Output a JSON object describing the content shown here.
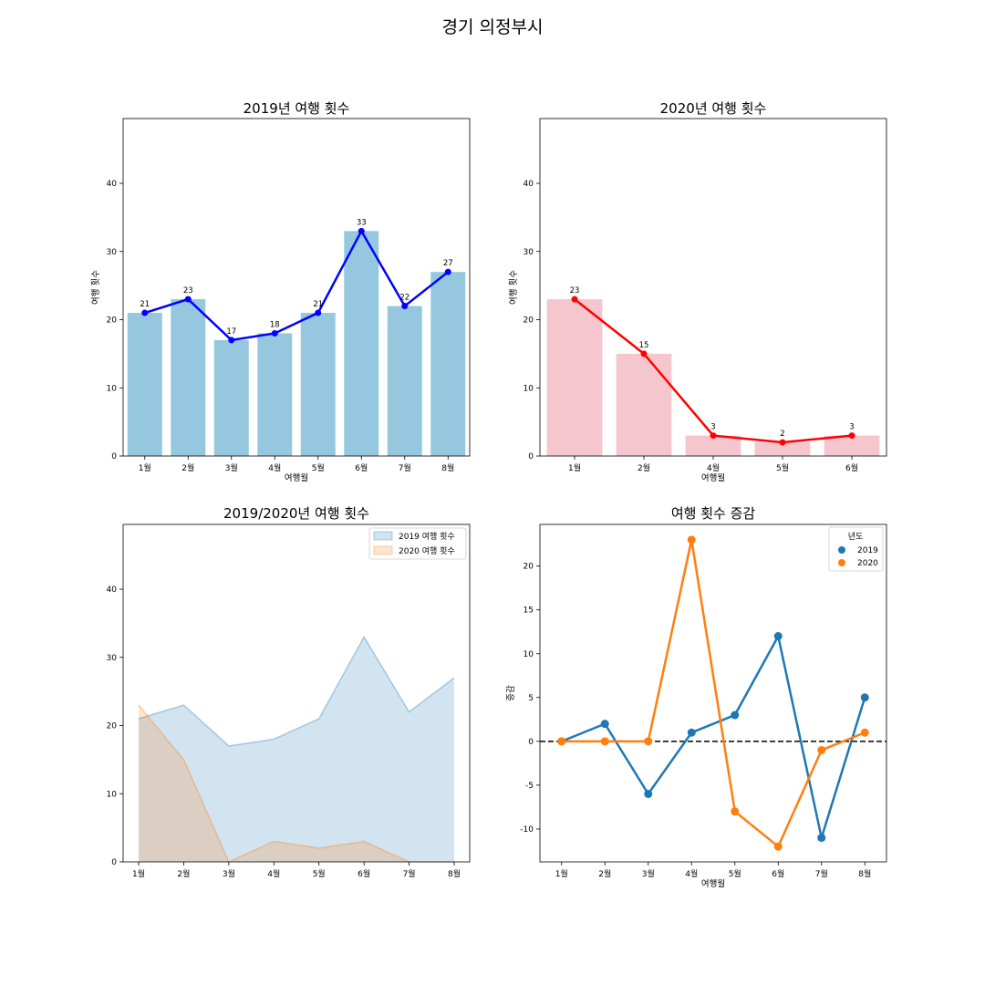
{
  "figure_title": "경기 의정부시",
  "chart_data": [
    {
      "type": "bar",
      "title": "2019년 여행 횟수",
      "xlabel": "여행월",
      "ylabel": "여행 횟수",
      "categories": [
        "1월",
        "2월",
        "3월",
        "4월",
        "5월",
        "6월",
        "7월",
        "8월"
      ],
      "values": [
        21,
        23,
        17,
        18,
        21,
        33,
        22,
        27
      ],
      "ylim": [
        0,
        49.5
      ],
      "yticks": [
        0,
        10,
        20,
        30,
        40
      ],
      "bar_color": "#95c8de",
      "line_color": "#0000ff",
      "data_labels": true
    },
    {
      "type": "bar",
      "title": "2020년 여행 횟수",
      "xlabel": "여행월",
      "ylabel": "여행 횟수",
      "categories": [
        "1월",
        "2월",
        "4월",
        "5월",
        "6월"
      ],
      "values": [
        23,
        15,
        3,
        2,
        3
      ],
      "ylim": [
        0,
        49.5
      ],
      "yticks": [
        0,
        10,
        20,
        30,
        40
      ],
      "bar_color": "#f6c6cf",
      "line_color": "#ff0000",
      "data_labels": true
    },
    {
      "type": "area",
      "title": "2019/2020년 여행 횟수",
      "xlabel": "",
      "ylabel": "",
      "categories": [
        "1월",
        "2월",
        "3월",
        "4월",
        "5월",
        "6월",
        "7월",
        "8월"
      ],
      "ylim": [
        0,
        49.5
      ],
      "yticks": [
        0,
        10,
        20,
        30,
        40
      ],
      "legend_position": "top-right",
      "series": [
        {
          "name": "2019 여행 횟수",
          "values": [
            21,
            23,
            17,
            18,
            21,
            33,
            22,
            27
          ],
          "color": "#1f77b4"
        },
        {
          "name": "2020 여행 횟수",
          "values": [
            23,
            15,
            0,
            3,
            2,
            3,
            0,
            0
          ],
          "color": "#ff7f0e"
        }
      ]
    },
    {
      "type": "line",
      "title": "여행 횟수 증감",
      "xlabel": "여행월",
      "ylabel": "증감",
      "categories": [
        "1월",
        "2월",
        "3월",
        "4월",
        "5월",
        "6월",
        "7월",
        "8월"
      ],
      "ylim": [
        -13.75,
        24.75
      ],
      "yticks": [
        -10,
        -5,
        0,
        5,
        10,
        15,
        20
      ],
      "ytick_labels": [
        "-10",
        "-5",
        "0",
        "5",
        "10",
        "15",
        "20"
      ],
      "zero_line": true,
      "legend_title": "년도",
      "legend_position": "top-right",
      "series": [
        {
          "name": "2019",
          "values": [
            0,
            2,
            -6,
            1,
            3,
            12,
            -11,
            5
          ],
          "color": "#1f77b4"
        },
        {
          "name": "2020",
          "values": [
            0,
            0,
            0,
            23,
            -8,
            -12,
            -1,
            1
          ],
          "color": "#ff7f0e"
        }
      ]
    }
  ]
}
